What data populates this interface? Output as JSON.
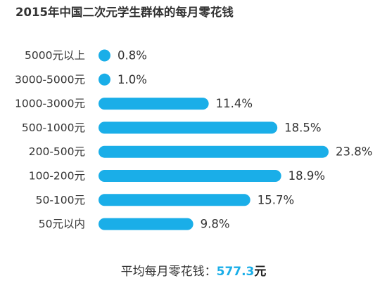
{
  "chart_data": {
    "type": "bar",
    "orientation": "horizontal",
    "title": "2015年中国二次元学生群体的每月零花钱",
    "categories": [
      "5000元以上",
      "3000-5000元",
      "1000-3000元",
      "500-1000元",
      "200-500元",
      "100-200元",
      "50-100元",
      "50元以内"
    ],
    "values": [
      0.8,
      1.0,
      11.4,
      18.5,
      23.8,
      18.9,
      15.7,
      9.8
    ],
    "labels": [
      "0.8%",
      "1.0%",
      "11.4%",
      "18.5%",
      "23.8%",
      "18.9%",
      "15.7%",
      "9.8%"
    ],
    "value_unit": "%",
    "xlim": [
      0,
      23.8
    ],
    "grid": false,
    "legend": "none",
    "bar_color": "#1aaee8"
  },
  "footer": {
    "label": "平均每月零花钱：",
    "value": "577.3",
    "unit": "元"
  }
}
